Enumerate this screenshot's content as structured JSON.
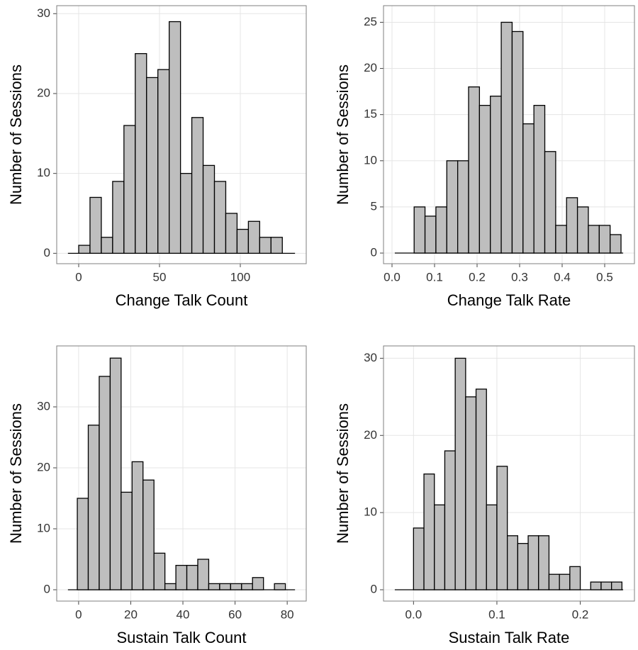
{
  "chart_data": [
    {
      "type": "histogram",
      "x_label": "Change Talk Count",
      "y_label": "Number of Sessions",
      "bins": [
        0,
        7,
        14,
        21,
        28,
        35,
        42,
        49,
        56,
        63,
        70,
        77,
        84,
        91,
        98,
        105,
        112,
        119,
        126
      ],
      "values": [
        1,
        7,
        2,
        9,
        16,
        25,
        22,
        23,
        29,
        10,
        17,
        11,
        9,
        5,
        3,
        4,
        2,
        2
      ],
      "color": "#bebebe",
      "xlim": [
        -13.6,
        140.8
      ],
      "ylim": [
        -1.3,
        31
      ],
      "xticks": [
        0,
        50,
        100
      ],
      "yticks": [
        0,
        10,
        20,
        30
      ],
      "grid": true
    },
    {
      "type": "histogram",
      "x_label": "Change Talk Rate",
      "y_label": "Number of Sessions",
      "bins": [
        0.052,
        0.0776,
        0.1032,
        0.1288,
        0.1544,
        0.18,
        0.2056,
        0.2312,
        0.2568,
        0.2824,
        0.308,
        0.3336,
        0.3592,
        0.3848,
        0.4104,
        0.436,
        0.4616,
        0.4872,
        0.5128,
        0.5384
      ],
      "values": [
        5,
        4,
        5,
        10,
        10,
        18,
        16,
        17,
        25,
        24,
        14,
        16,
        11,
        3,
        6,
        5,
        3,
        3,
        2
      ],
      "color": "#bebebe",
      "xlim": [
        -0.02,
        0.57
      ],
      "ylim": [
        -1.15,
        26.8
      ],
      "xticks": [
        {
          "value": 0,
          "label": "0.0"
        },
        0.1,
        0.2,
        0.3,
        0.4,
        0.5
      ],
      "yticks": [
        0,
        5,
        10,
        15,
        20,
        25
      ],
      "grid": true
    },
    {
      "type": "histogram",
      "x_label": "Sustain Talk Count",
      "y_label": "Number of Sessions",
      "bins": [
        -0.5,
        3.7,
        7.9,
        12.1,
        16.3,
        20.5,
        24.7,
        28.9,
        33.1,
        37.3,
        41.5,
        45.7,
        49.9,
        54.1,
        58.3,
        62.5,
        66.7,
        70.9,
        75.1,
        79.3
      ],
      "values": [
        15,
        27,
        35,
        38,
        16,
        21,
        18,
        6,
        1,
        4,
        4,
        5,
        1,
        1,
        1,
        1,
        2,
        0,
        1
      ],
      "color": "#bebebe",
      "xlim": [
        -8.4,
        87.3
      ],
      "ylim": [
        -1.86,
        40
      ],
      "xticks": [
        0,
        20,
        40,
        60,
        80
      ],
      "yticks": [
        0,
        10,
        20,
        30
      ],
      "grid": true
    },
    {
      "type": "histogram",
      "x_label": "Sustain Talk Rate",
      "y_label": "Number of Sessions",
      "bins": [
        0,
        0.0125,
        0.025,
        0.0375,
        0.05,
        0.0625,
        0.075,
        0.0875,
        0.1,
        0.1125,
        0.125,
        0.1375,
        0.15,
        0.1625,
        0.175,
        0.1875,
        0.2,
        0.2125,
        0.225,
        0.2375,
        0.25
      ],
      "values": [
        8,
        15,
        11,
        18,
        30,
        25,
        26,
        11,
        16,
        7,
        6,
        7,
        7,
        2,
        2,
        3,
        0,
        1,
        1,
        1
      ],
      "color": "#bebebe",
      "xlim": [
        -0.036,
        0.265
      ],
      "ylim": [
        -1.47,
        31.6
      ],
      "xticks": [
        {
          "value": 0,
          "label": "0.0"
        },
        0.1,
        0.2
      ],
      "yticks": [
        0,
        10,
        20,
        30
      ],
      "grid": true
    }
  ]
}
